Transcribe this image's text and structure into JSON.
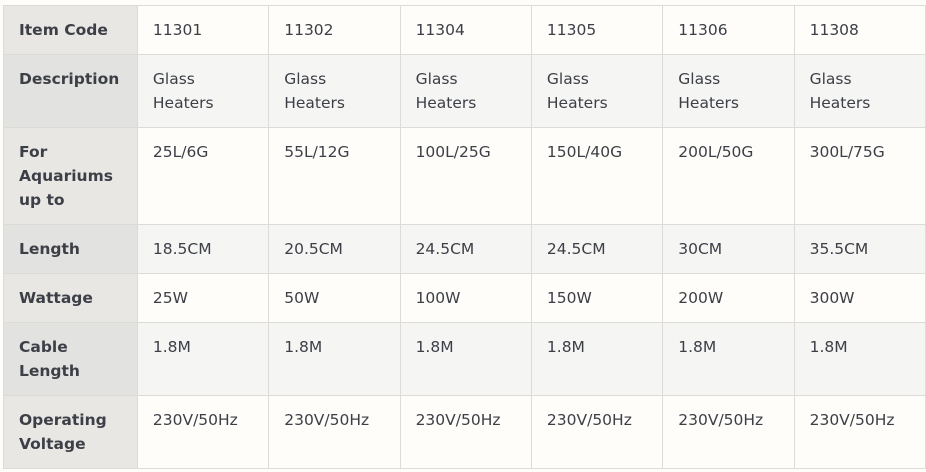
{
  "table": {
    "rows": [
      {
        "label": "Item Code",
        "values": [
          "11301",
          "11302",
          "11304",
          "11305",
          "11306",
          "11308"
        ]
      },
      {
        "label": "Description",
        "values": [
          "Glass Heaters",
          "Glass Heaters",
          "Glass Heaters",
          "Glass Heaters",
          "Glass Heaters",
          "Glass Heaters"
        ]
      },
      {
        "label": "For Aquariums up to",
        "values": [
          "25L/6G",
          "55L/12G",
          "100L/25G",
          "150L/40G",
          "200L/50G",
          "300L/75G"
        ]
      },
      {
        "label": "Length",
        "values": [
          "18.5CM",
          "20.5CM",
          "24.5CM",
          "24.5CM",
          "30CM",
          "35.5CM"
        ]
      },
      {
        "label": "Wattage",
        "values": [
          "25W",
          "50W",
          "100W",
          "150W",
          "200W",
          "300W"
        ]
      },
      {
        "label": "Cable Length",
        "values": [
          "1.8M",
          "1.8M",
          "1.8M",
          "1.8M",
          "1.8M",
          "1.8M"
        ]
      },
      {
        "label": "Operating Voltage",
        "values": [
          "230V/50Hz",
          "230V/50Hz",
          "230V/50Hz",
          "230V/50Hz",
          "230V/50Hz",
          "230V/50Hz"
        ]
      }
    ]
  }
}
